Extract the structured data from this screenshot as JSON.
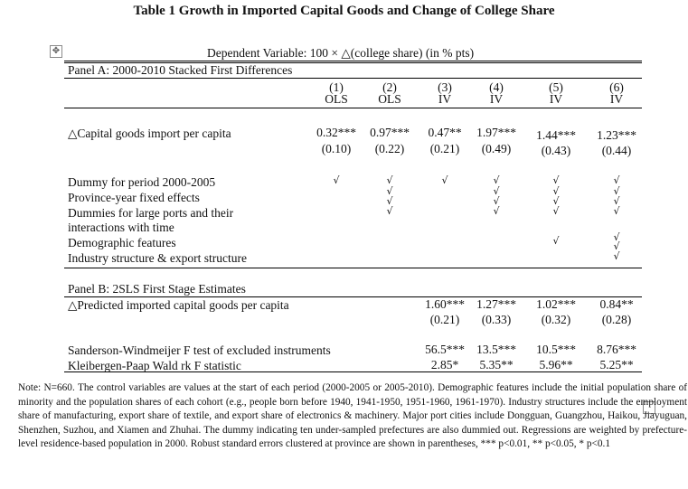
{
  "title": "Table 1 Growth in Imported Capital Goods and Change of College Share",
  "dep_var": "Dependent Variable: 100 × △(college share) (in % pts)",
  "panel_a_title": "Panel A: 2000-2010 Stacked First Differences",
  "columns": [
    {
      "num": "(1)",
      "method": "OLS"
    },
    {
      "num": "(2)",
      "method": "OLS"
    },
    {
      "num": "(3)",
      "method": "IV"
    },
    {
      "num": "(4)",
      "method": "IV"
    },
    {
      "num": "(5)",
      "method": "IV"
    },
    {
      "num": "(6)",
      "method": "IV"
    }
  ],
  "row_capital": {
    "label": "△Capital goods import per capita",
    "coefs": [
      "0.32***",
      "0.97***",
      "0.47**",
      "1.97***",
      "1.44***",
      "1.23***"
    ],
    "se": [
      "(0.10)",
      "(0.22)",
      "(0.21)",
      "(0.49)",
      "(0.43)",
      "(0.44)"
    ]
  },
  "control_labels": [
    "Dummy for period 2000-2005",
    "Province-year fixed effects",
    "Dummies for large ports and their",
    "interactions with time",
    "Demographic features",
    "Industry structure & export structure"
  ],
  "check_mark": "√",
  "panel_b_title": "Panel B: 2SLS First Stage Estimates",
  "row_predicted": {
    "label": "△Predicted imported capital goods per capita",
    "coefs": [
      "1.60***",
      "1.27***",
      "1.02***",
      "0.84**"
    ],
    "se": [
      "(0.21)",
      "(0.33)",
      "(0.32)",
      "(0.28)"
    ]
  },
  "row_sw": {
    "label": "Sanderson-Windmeijer F test of excluded instruments",
    "values": [
      "56.5***",
      "13.5***",
      "10.5***",
      "8.76***"
    ]
  },
  "row_kp": {
    "label": "Kleibergen-Paap Wald rk F statistic",
    "values": [
      "2.85*",
      "5.35**",
      "5.96**",
      "5.25**"
    ]
  },
  "note": "Note: N=660. The control variables are values at the start of each period (2000-2005 or 2005-2010). Demographic features include the initial population share of minority and the population shares of each cohort (e.g., people born before 1940, 1941-1950, 1951-1960, 1961-1970). Industry structures include the employment share of manufacturing, export share of textile, and export share of electronics & machinery. Major port cities include Dongguan, Guangzhou, Haikou, Jiayuguan, Shenzhen, Suzhou, and Xiamen and Zhuhai. The dummy indicating ten under-sampled prefectures are also dummied out. Regressions are weighted by prefecture-level residence-based population in 2000. Robust standard errors clustered at province are shown in parentheses, *** p<0.01, ** p<0.05, * p<0.1",
  "icons": {
    "move_handle": "move-arrows-icon",
    "resize_handle": "resize-handle-icon"
  }
}
